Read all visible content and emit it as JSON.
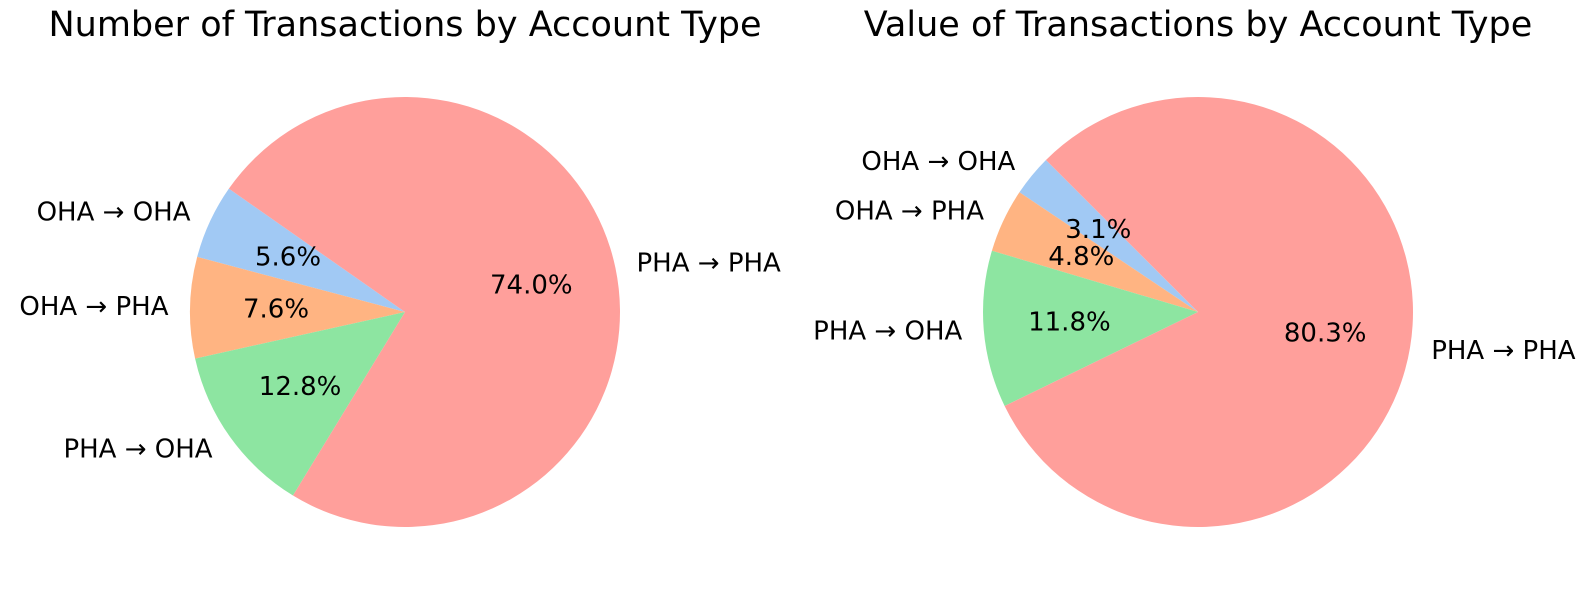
{
  "chart_data": [
    {
      "type": "pie",
      "title": "Number of Transactions by Account Type",
      "categories": [
        "OHA → OHA",
        "OHA → PHA",
        "PHA → OHA",
        "PHA → PHA"
      ],
      "values": [
        5.6,
        7.6,
        12.8,
        74.0
      ],
      "value_labels": [
        "5.6%",
        "7.6%",
        "12.8%",
        "74.0%"
      ],
      "colors": [
        "#a1c9f4",
        "#ffb482",
        "#8de5a1",
        "#ff9f9b"
      ],
      "start_angle_deg": 145,
      "direction": "counterclockwise",
      "legend": "none"
    },
    {
      "type": "pie",
      "title": "Value of Transactions by Account Type",
      "categories": [
        "OHA → OHA",
        "OHA → PHA",
        "PHA → OHA",
        "PHA → PHA"
      ],
      "values": [
        3.1,
        4.8,
        11.8,
        80.3
      ],
      "value_labels": [
        "3.1%",
        "4.8%",
        "11.8%",
        "80.3%"
      ],
      "colors": [
        "#a1c9f4",
        "#ffb482",
        "#8de5a1",
        "#ff9f9b"
      ],
      "start_angle_deg": 135,
      "direction": "counterclockwise",
      "legend": "none"
    }
  ]
}
